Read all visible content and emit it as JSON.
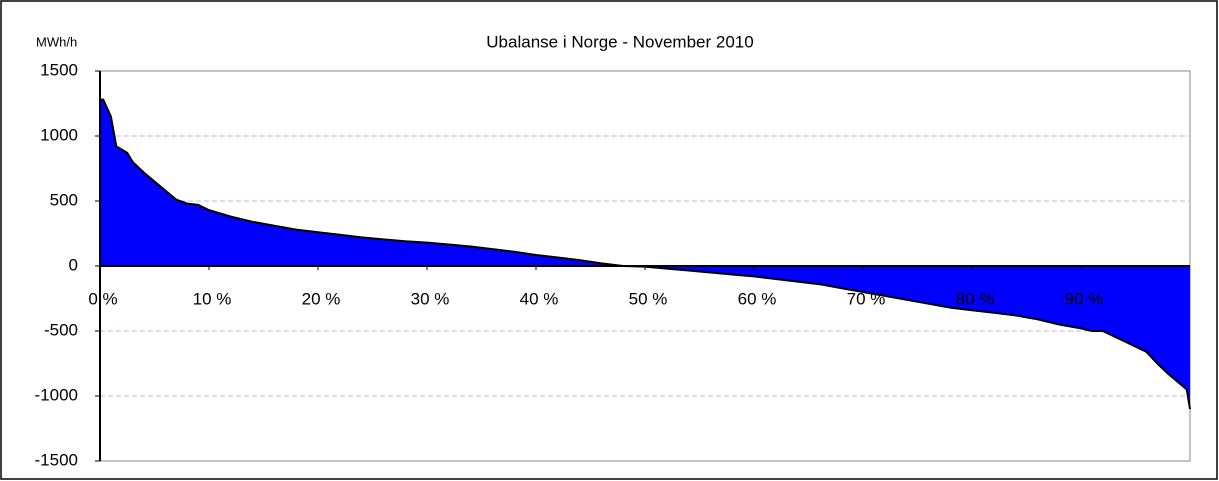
{
  "chart_data": {
    "type": "area",
    "title": "Ubalanse i Norge - November 2010",
    "y_label": "MWh/h",
    "x": [
      0,
      0.3,
      1,
      1.5,
      2.5,
      3,
      4,
      5,
      6,
      7,
      8,
      9,
      10,
      12,
      14,
      16,
      18,
      20,
      22,
      24,
      26,
      28,
      30,
      32,
      34,
      36,
      38,
      40,
      42,
      44,
      46,
      48,
      50,
      52,
      54,
      56,
      58,
      60,
      62,
      64,
      66,
      68,
      70,
      72,
      74,
      76,
      78,
      80,
      82,
      84,
      86,
      88,
      90,
      91,
      92,
      93,
      94,
      95,
      96,
      97,
      98,
      99,
      99.7,
      100
    ],
    "series": [
      {
        "color": "#0000ff",
        "values": [
          1280,
          1280,
          1150,
          920,
          870,
          800,
          720,
          650,
          580,
          510,
          480,
          470,
          430,
          380,
          340,
          310,
          280,
          260,
          240,
          220,
          205,
          190,
          180,
          165,
          150,
          130,
          110,
          85,
          65,
          45,
          20,
          0,
          -5,
          -20,
          -35,
          -50,
          -65,
          -80,
          -100,
          -120,
          -140,
          -170,
          -200,
          -230,
          -260,
          -290,
          -320,
          -340,
          -360,
          -380,
          -410,
          -450,
          -480,
          -500,
          -500,
          -540,
          -580,
          -620,
          -660,
          -750,
          -830,
          -900,
          -950,
          -1100
        ]
      }
    ],
    "xlim": [
      0,
      100
    ],
    "xticks": [
      {
        "value": 0,
        "label": "0 %"
      },
      {
        "value": 10,
        "label": "10 %"
      },
      {
        "value": 20,
        "label": "20 %"
      },
      {
        "value": 30,
        "label": "30 %"
      },
      {
        "value": 40,
        "label": "40 %"
      },
      {
        "value": 50,
        "label": "50 %"
      },
      {
        "value": 60,
        "label": "60 %"
      },
      {
        "value": 70,
        "label": "70 %"
      },
      {
        "value": 80,
        "label": "80 %"
      },
      {
        "value": 90,
        "label": "90 %"
      }
    ],
    "ylim": [
      -1500,
      1500
    ],
    "yticks": [
      -1500,
      -1000,
      -500,
      0,
      500,
      1000,
      1500
    ],
    "grid": true
  }
}
